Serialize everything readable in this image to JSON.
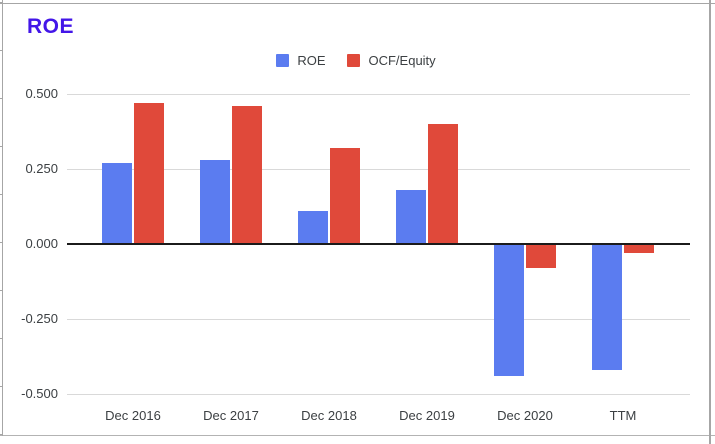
{
  "chart_data": {
    "type": "bar",
    "title": "ROE",
    "title_color": "#4316e8",
    "categories": [
      "Dec 2016",
      "Dec 2017",
      "Dec 2018",
      "Dec 2019",
      "Dec 2020",
      "TTM"
    ],
    "series": [
      {
        "name": "ROE",
        "color": "#5b7cf0",
        "values": [
          0.27,
          0.28,
          0.11,
          0.18,
          -0.44,
          -0.42
        ]
      },
      {
        "name": "OCF/Equity",
        "color": "#e0493a",
        "values": [
          0.47,
          0.46,
          0.32,
          0.4,
          -0.08,
          -0.03
        ]
      }
    ],
    "ylabel": "",
    "xlabel": "",
    "ylim": [
      -0.5,
      0.5
    ],
    "yticks": [
      {
        "value": 0.5,
        "label": "0.500"
      },
      {
        "value": 0.25,
        "label": "0.250"
      },
      {
        "value": 0,
        "label": "0.000"
      },
      {
        "value": -0.25,
        "label": "-0.250"
      },
      {
        "value": -0.5,
        "label": "-0.500"
      }
    ],
    "grid": true,
    "legend_position": "top-center",
    "axis_color": "#1b1b1b",
    "gridline_color": "#d9d9d9",
    "sheet_gridline_color": "#a6a6a6"
  }
}
